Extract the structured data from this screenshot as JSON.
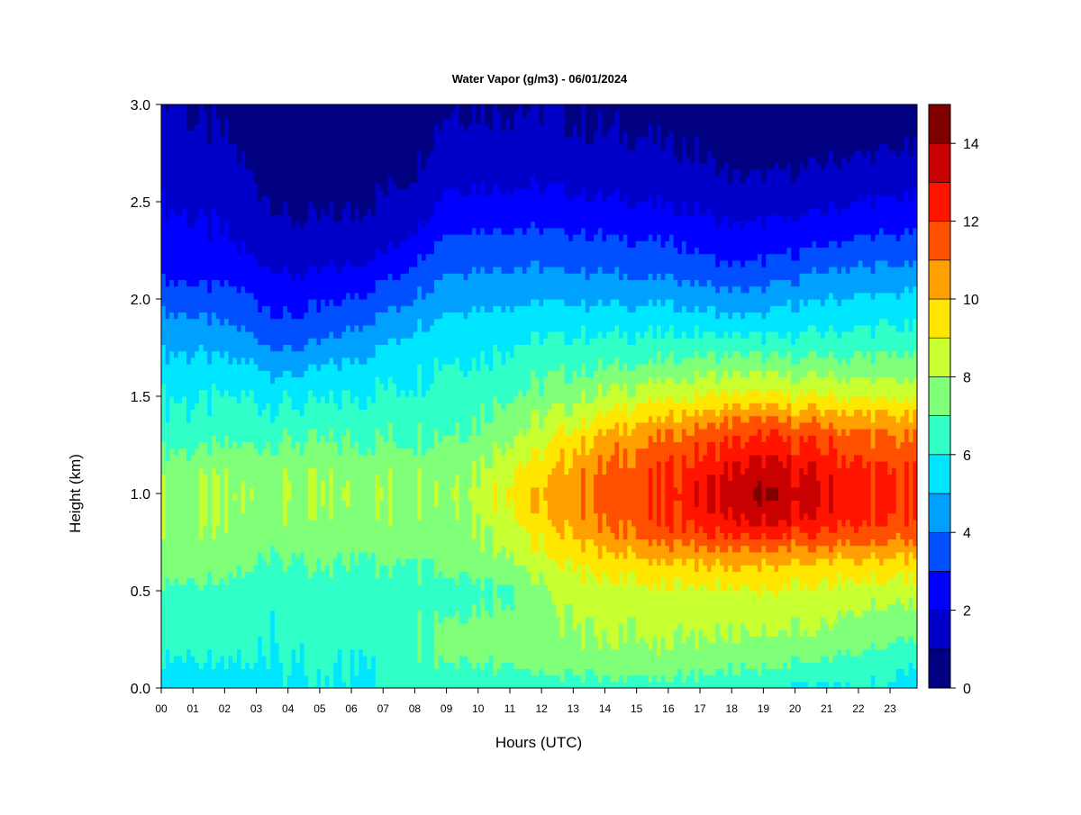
{
  "chart_data": {
    "type": "heatmap",
    "title": "Water Vapor (g/m3) - 06/01/2024",
    "xlabel": "Hours (UTC)",
    "ylabel": "Height (km)",
    "x_tick_labels": [
      "00",
      "01",
      "02",
      "03",
      "04",
      "05",
      "06",
      "07",
      "08",
      "09",
      "10",
      "11",
      "12",
      "13",
      "14",
      "15",
      "16",
      "17",
      "18",
      "19",
      "20",
      "21",
      "22",
      "23"
    ],
    "x_ticks": [
      0,
      1,
      2,
      3,
      4,
      5,
      6,
      7,
      8,
      9,
      10,
      11,
      12,
      13,
      14,
      15,
      16,
      17,
      18,
      19,
      20,
      21,
      22,
      23
    ],
    "xlim": [
      0,
      23.85
    ],
    "y_ticks": [
      0.0,
      0.5,
      1.0,
      1.5,
      2.0,
      2.5,
      3.0
    ],
    "y_tick_labels": [
      "0.0",
      "0.5",
      "1.0",
      "1.5",
      "2.0",
      "2.5",
      "3.0"
    ],
    "ylim": [
      0,
      3.0
    ],
    "colorbar": {
      "range": [
        0,
        15
      ],
      "tick_values": [
        0,
        2,
        4,
        6,
        8,
        10,
        12,
        14
      ],
      "tick_labels": [
        "0",
        "2",
        "4",
        "6",
        "8",
        "10",
        "12",
        "14"
      ],
      "levels": [
        0,
        1,
        2,
        3,
        4,
        5,
        6,
        7,
        8,
        9,
        10,
        11,
        12,
        13,
        14,
        15
      ],
      "colors": [
        "#000080",
        "#0000c8",
        "#0000ff",
        "#0050ff",
        "#00a0ff",
        "#00e6ff",
        "#30ffc8",
        "#80ff78",
        "#c8ff30",
        "#ffe600",
        "#ffa000",
        "#ff5000",
        "#ff1400",
        "#c80000",
        "#800000"
      ]
    },
    "hours": [
      0,
      1,
      2,
      3,
      4,
      5,
      6,
      7,
      8,
      9,
      10,
      11,
      12,
      13,
      14,
      15,
      16,
      17,
      18,
      19,
      20,
      21,
      22,
      23,
      23.8
    ],
    "heights": [
      0.0,
      0.1,
      0.2,
      0.3,
      0.4,
      0.5,
      0.6,
      0.7,
      0.8,
      0.9,
      1.0,
      1.1,
      1.2,
      1.3,
      1.4,
      1.5,
      1.6,
      1.7,
      1.8,
      1.9,
      2.0,
      2.1,
      2.2,
      2.3,
      2.4,
      2.5,
      2.6,
      2.7,
      2.8,
      2.9,
      3.0
    ],
    "values": [
      [
        5.5,
        5.8,
        6.2,
        6.4,
        6.6,
        6.8,
        7.4,
        7.6,
        7.7,
        7.8,
        7.9,
        7.6,
        7.2,
        6.5,
        6.3,
        6.0,
        5.6,
        5.2,
        4.6,
        4.2,
        3.5,
        3.0,
        2.6,
        2.4,
        2.2,
        2.0,
        1.8,
        1.6,
        1.5,
        1.3,
        1.2
      ],
      [
        5.6,
        5.8,
        6.2,
        6.3,
        6.5,
        6.7,
        7.3,
        7.6,
        7.7,
        7.8,
        7.9,
        7.7,
        7.2,
        6.4,
        6.2,
        5.9,
        5.4,
        5.1,
        4.5,
        4.1,
        3.4,
        2.9,
        2.4,
        2.2,
        2.0,
        1.8,
        1.6,
        1.4,
        1.2,
        1.0,
        0.9
      ],
      [
        5.4,
        5.8,
        6.1,
        6.2,
        6.4,
        6.5,
        7.2,
        7.5,
        7.7,
        7.8,
        7.9,
        7.7,
        7.3,
        6.5,
        6.3,
        6.0,
        5.4,
        5.0,
        4.4,
        3.9,
        3.3,
        2.9,
        2.3,
        2.1,
        1.9,
        1.7,
        1.5,
        1.3,
        1.1,
        0.9,
        0.8
      ],
      [
        5.8,
        6.0,
        6.1,
        6.2,
        6.3,
        6.4,
        6.8,
        7.3,
        7.6,
        7.8,
        7.9,
        7.7,
        7.4,
        6.6,
        6.3,
        6.0,
        5.4,
        4.8,
        4.0,
        3.4,
        3.0,
        2.6,
        2.0,
        1.7,
        1.5,
        1.2,
        1.0,
        0.8,
        0.6,
        0.5,
        0.4
      ],
      [
        5.8,
        6.0,
        6.1,
        6.2,
        6.2,
        6.4,
        6.7,
        7.2,
        7.5,
        7.7,
        7.9,
        7.7,
        7.4,
        6.8,
        6.3,
        5.8,
        5.0,
        4.3,
        3.5,
        3.0,
        2.6,
        2.1,
        1.6,
        1.3,
        1.0,
        0.8,
        0.6,
        0.4,
        0.3,
        0.2,
        0.2
      ],
      [
        5.9,
        6.0,
        6.1,
        6.2,
        6.3,
        6.4,
        6.8,
        7.2,
        7.5,
        7.7,
        7.9,
        7.7,
        7.3,
        6.8,
        6.3,
        5.8,
        5.2,
        4.5,
        3.8,
        3.2,
        2.8,
        2.3,
        1.7,
        1.3,
        1.0,
        0.8,
        0.6,
        0.4,
        0.3,
        0.2,
        0.2
      ],
      [
        5.9,
        6.0,
        6.1,
        6.3,
        6.3,
        6.5,
        6.8,
        7.2,
        7.5,
        7.7,
        7.9,
        7.7,
        7.3,
        6.9,
        6.4,
        6.0,
        5.5,
        5.0,
        4.3,
        3.6,
        3.0,
        2.5,
        1.8,
        1.4,
        1.1,
        0.9,
        0.7,
        0.5,
        0.4,
        0.3,
        0.2
      ],
      [
        6.0,
        6.1,
        6.3,
        6.4,
        6.5,
        6.6,
        6.9,
        7.3,
        7.6,
        7.8,
        8.0,
        7.8,
        7.3,
        6.9,
        6.5,
        6.2,
        5.8,
        5.3,
        4.8,
        4.2,
        3.5,
        2.9,
        2.2,
        1.7,
        1.3,
        1.1,
        0.9,
        0.7,
        0.6,
        0.5,
        0.4
      ],
      [
        6.3,
        6.8,
        7.0,
        7.0,
        6.8,
        6.6,
        7.0,
        7.4,
        7.6,
        7.8,
        8.0,
        7.8,
        7.4,
        7.0,
        6.6,
        6.3,
        6.0,
        5.7,
        5.3,
        4.7,
        4.1,
        3.5,
        3.0,
        2.3,
        1.8,
        1.4,
        1.1,
        0.9,
        0.7,
        0.6,
        0.5
      ],
      [
        6.4,
        7.0,
        7.2,
        7.2,
        7.0,
        6.8,
        7.2,
        7.5,
        7.8,
        7.9,
        8.1,
        7.9,
        7.5,
        7.1,
        6.8,
        6.5,
        6.3,
        6.0,
        5.6,
        5.2,
        4.7,
        4.2,
        3.7,
        3.2,
        2.7,
        2.3,
        1.9,
        1.6,
        1.3,
        1.1,
        1.0
      ],
      [
        6.5,
        7.0,
        7.3,
        7.3,
        7.1,
        6.8,
        7.3,
        7.8,
        8.0,
        8.3,
        8.4,
        8.2,
        7.8,
        7.3,
        7.0,
        6.6,
        6.3,
        6.0,
        5.7,
        5.3,
        4.8,
        4.3,
        3.8,
        3.3,
        2.8,
        2.3,
        1.9,
        1.6,
        1.3,
        1.1,
        1.0
      ],
      [
        6.5,
        7.0,
        7.4,
        7.4,
        7.2,
        7.0,
        7.7,
        8.3,
        8.7,
        9.2,
        9.4,
        9.1,
        8.6,
        8.0,
        7.6,
        7.0,
        6.6,
        6.2,
        5.9,
        5.4,
        4.8,
        4.3,
        3.8,
        3.3,
        2.8,
        2.3,
        1.9,
        1.6,
        1.3,
        1.1,
        1.0
      ],
      [
        6.5,
        7.1,
        7.6,
        7.6,
        7.6,
        7.6,
        8.2,
        8.8,
        9.3,
        9.8,
        9.9,
        9.6,
        9.1,
        8.4,
        7.9,
        7.3,
        6.9,
        6.4,
        6.0,
        5.5,
        4.9,
        4.3,
        3.8,
        3.3,
        2.8,
        2.3,
        1.9,
        1.6,
        1.3,
        1.1,
        1.0
      ],
      [
        6.6,
        7.2,
        7.8,
        8.0,
        8.2,
        8.5,
        9.0,
        9.6,
        10.2,
        10.7,
        10.9,
        10.6,
        10.1,
        9.4,
        8.5,
        7.7,
        7.1,
        6.6,
        6.1,
        5.5,
        4.9,
        4.3,
        3.7,
        3.2,
        2.7,
        2.2,
        1.8,
        1.5,
        1.2,
        1.0,
        0.9
      ],
      [
        6.6,
        7.2,
        7.9,
        8.1,
        8.3,
        8.6,
        9.2,
        9.9,
        10.8,
        11.2,
        11.4,
        11.2,
        10.8,
        10.2,
        9.2,
        8.2,
        7.4,
        6.7,
        6.1,
        5.5,
        4.8,
        4.2,
        3.6,
        3.1,
        2.6,
        2.1,
        1.7,
        1.4,
        1.1,
        0.9,
        0.8
      ],
      [
        6.7,
        7.3,
        7.9,
        8.1,
        8.3,
        8.7,
        9.3,
        10.2,
        11.2,
        11.7,
        11.8,
        11.6,
        11.2,
        10.6,
        9.6,
        8.5,
        7.6,
        6.8,
        6.1,
        5.5,
        4.8,
        4.1,
        3.5,
        3.0,
        2.5,
        2.0,
        1.6,
        1.3,
        1.1,
        0.9,
        0.8
      ],
      [
        6.7,
        7.3,
        7.9,
        8.2,
        8.4,
        8.8,
        9.5,
        10.5,
        11.6,
        12.1,
        12.3,
        12.0,
        11.6,
        11.0,
        9.9,
        8.7,
        7.8,
        6.9,
        6.2,
        5.5,
        4.8,
        4.1,
        3.5,
        3.0,
        2.4,
        1.9,
        1.5,
        1.2,
        1.0,
        0.8,
        0.7
      ],
      [
        6.5,
        7.2,
        7.8,
        8.1,
        8.4,
        8.8,
        9.6,
        10.6,
        11.9,
        12.6,
        12.8,
        12.6,
        12.0,
        11.4,
        10.3,
        9.0,
        8.0,
        7.1,
        6.2,
        5.4,
        4.6,
        3.9,
        3.2,
        2.7,
        2.2,
        1.8,
        1.4,
        1.1,
        0.9,
        0.7,
        0.5
      ],
      [
        6.3,
        7.0,
        7.7,
        8.1,
        8.4,
        8.9,
        9.7,
        10.8,
        12.2,
        13.2,
        13.5,
        13.2,
        12.5,
        11.8,
        10.7,
        9.2,
        8.1,
        7.1,
        6.0,
        5.2,
        4.3,
        3.6,
        2.9,
        2.4,
        1.9,
        1.5,
        1.1,
        0.8,
        0.5,
        0.4,
        0.3
      ],
      [
        6.2,
        7.0,
        7.6,
        8.0,
        8.4,
        8.9,
        9.6,
        10.7,
        12.3,
        13.5,
        14.0,
        13.6,
        12.8,
        12.0,
        10.8,
        9.3,
        8.1,
        7.0,
        6.0,
        5.3,
        4.4,
        3.7,
        3.0,
        2.5,
        2.0,
        1.5,
        1.1,
        0.8,
        0.5,
        0.4,
        0.3
      ],
      [
        5.7,
        6.7,
        7.6,
        8.0,
        8.4,
        8.8,
        9.5,
        10.6,
        12.1,
        13.2,
        13.5,
        13.2,
        12.5,
        11.8,
        10.5,
        9.1,
        8.0,
        7.0,
        6.1,
        5.5,
        4.8,
        4.0,
        3.2,
        2.6,
        2.1,
        1.6,
        1.2,
        0.9,
        0.6,
        0.5,
        0.4
      ],
      [
        5.8,
        6.5,
        7.4,
        7.9,
        8.3,
        8.7,
        9.4,
        10.5,
        11.9,
        12.8,
        13.0,
        12.7,
        12.2,
        11.6,
        10.4,
        9.0,
        8.0,
        7.0,
        6.2,
        5.6,
        5.0,
        4.4,
        3.6,
        2.9,
        2.3,
        1.8,
        1.4,
        1.0,
        0.7,
        0.5,
        0.4
      ],
      [
        6.0,
        6.4,
        7.1,
        7.6,
        8.0,
        8.6,
        9.3,
        10.4,
        11.7,
        12.4,
        12.6,
        12.3,
        11.8,
        11.3,
        10.2,
        8.9,
        7.9,
        7.0,
        6.3,
        5.7,
        5.1,
        4.5,
        3.8,
        3.1,
        2.5,
        2.0,
        1.5,
        1.1,
        0.8,
        0.6,
        0.4
      ],
      [
        5.9,
        6.2,
        6.8,
        7.4,
        7.8,
        8.5,
        9.2,
        10.3,
        11.5,
        12.0,
        12.2,
        12.0,
        11.5,
        11.0,
        10.0,
        8.8,
        7.9,
        7.1,
        6.3,
        5.8,
        5.2,
        4.5,
        3.8,
        3.2,
        2.6,
        2.1,
        1.6,
        1.2,
        0.9,
        0.6,
        0.4
      ],
      [
        5.3,
        5.9,
        6.5,
        7.2,
        7.7,
        8.4,
        9.1,
        10.2,
        11.3,
        11.8,
        12.0,
        11.8,
        11.4,
        10.9,
        9.9,
        8.7,
        7.8,
        7.0,
        6.3,
        5.8,
        5.2,
        4.5,
        3.8,
        3.2,
        2.6,
        2.1,
        1.6,
        1.2,
        0.9,
        0.6,
        0.4
      ]
    ]
  }
}
